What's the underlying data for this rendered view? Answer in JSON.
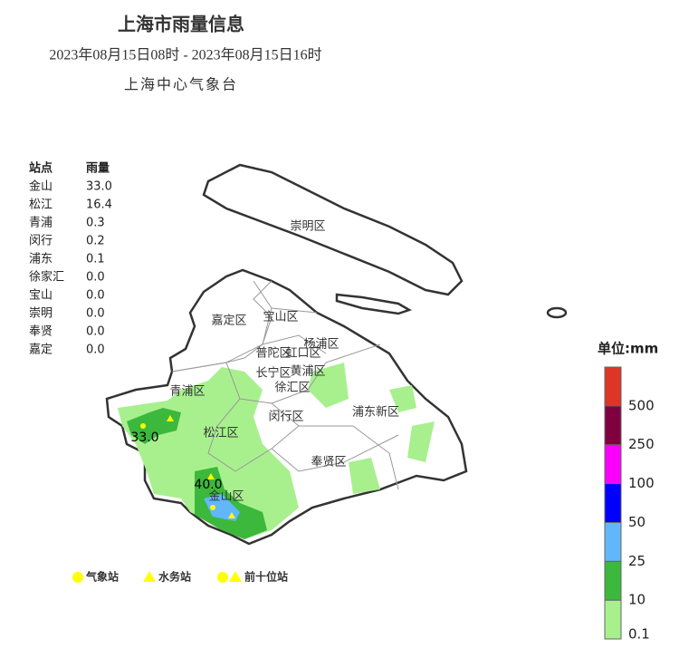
{
  "header": {
    "title": "上海市雨量信息",
    "time_range": "2023年08月15日08时 - 2023年08月15日16时",
    "source": "上海中心气象台"
  },
  "table": {
    "columns": [
      "站点",
      "雨量"
    ],
    "rows": [
      [
        "金山",
        "33.0"
      ],
      [
        "松江",
        "16.4"
      ],
      [
        "青浦",
        "0.3"
      ],
      [
        "闵行",
        "0.2"
      ],
      [
        "浦东",
        "0.1"
      ],
      [
        "徐家汇",
        "0.0"
      ],
      [
        "宝山",
        "0.0"
      ],
      [
        "崇明",
        "0.0"
      ],
      [
        "奉贤",
        "0.0"
      ],
      [
        "嘉定",
        "0.0"
      ]
    ]
  },
  "map": {
    "districts": [
      "崇明区",
      "嘉定区",
      "宝山区",
      "普陀区",
      "虹口区",
      "杨浦区",
      "长宁区",
      "黄浦区",
      "徐汇区",
      "青浦区",
      "闵行区",
      "浦东新区",
      "松江区",
      "奉贤区",
      "金山区"
    ],
    "peaks": [
      "33.0",
      "40.0"
    ]
  },
  "markers_legend": [
    "气象站",
    "水务站",
    "前十位站"
  ],
  "colorbar": {
    "title": "单位:mm",
    "labels": [
      0.1,
      10,
      25,
      50,
      100,
      250,
      500
    ],
    "colors": [
      "#a8f08e",
      "#3cb83c",
      "#62b7fc",
      "#0000fe",
      "#fa00fa",
      "#80003f",
      "#dd3526"
    ]
  }
}
